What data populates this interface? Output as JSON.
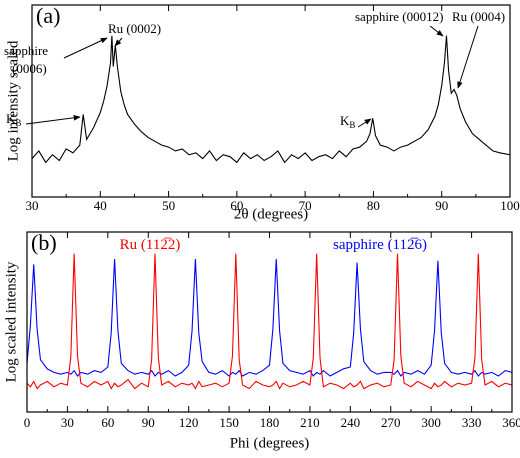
{
  "chart_data": [
    {
      "type": "line",
      "panel_label": "(a)",
      "xlabel": "2θ (degrees)",
      "ylabel": "Log intensity scaled",
      "xlim": [
        30,
        100
      ],
      "xticks": [
        30,
        40,
        50,
        60,
        70,
        80,
        90,
        100
      ],
      "ylim": [
        0,
        100
      ],
      "x": [
        30,
        31,
        32,
        33,
        34,
        35,
        36,
        37,
        37.5,
        38,
        38.5,
        39,
        39.5,
        40,
        40.5,
        41,
        41.5,
        41.7,
        41.9,
        42.2,
        42.5,
        43,
        43.5,
        44,
        45,
        46,
        47,
        48,
        49,
        50,
        51,
        52,
        53,
        54,
        55,
        56,
        57,
        58,
        59,
        60,
        61,
        62,
        63,
        64,
        65,
        66,
        67,
        68,
        69,
        70,
        71,
        72,
        73,
        74,
        75,
        76,
        77,
        78,
        79,
        79.5,
        79.9,
        80.3,
        81,
        82,
        83,
        84,
        85,
        86,
        87,
        88,
        89,
        89.5,
        90,
        90.4,
        90.7,
        91,
        91.4,
        91.8,
        92.2,
        92.7,
        93.5,
        94.5,
        95.5,
        96.5,
        97.5,
        98.5,
        100
      ],
      "series": [
        {
          "color": "#000000",
          "values": [
            20,
            24,
            18,
            22,
            19,
            25,
            23,
            27,
            43,
            30,
            33,
            36,
            40,
            44,
            50,
            58,
            70,
            84,
            68,
            79,
            68,
            55,
            48,
            43,
            38,
            34,
            31,
            29,
            27,
            26,
            24,
            25,
            22,
            23,
            20,
            24,
            19,
            22,
            21,
            18,
            23,
            20,
            22,
            19,
            21,
            24,
            18,
            22,
            20,
            23,
            19,
            21,
            22,
            20,
            24,
            21,
            25,
            26,
            29,
            33,
            41,
            32,
            27,
            26,
            24,
            26,
            27,
            29,
            31,
            35,
            42,
            48,
            58,
            70,
            84,
            66,
            54,
            56,
            53,
            46,
            39,
            33,
            30,
            27,
            24,
            23,
            22
          ]
        }
      ],
      "annotations": [
        {
          "text": "sapphire"
        },
        {
          "text": "(0006)"
        },
        {
          "text": "Ru (0002)"
        },
        {
          "text": "K",
          "subscript": "B"
        },
        {
          "text": "K",
          "subscript": "B"
        },
        {
          "text": "sapphire (00012)"
        },
        {
          "text": "Ru (0004)"
        }
      ]
    },
    {
      "type": "line",
      "panel_label": "(b)",
      "xlabel": "Phi (degrees)",
      "ylabel": "Log scaled intensity",
      "xlim": [
        0,
        360
      ],
      "xticks": [
        0,
        30,
        60,
        90,
        120,
        150,
        180,
        210,
        240,
        270,
        300,
        330,
        360
      ],
      "ylim": [
        0,
        100
      ],
      "x": [
        0,
        2.5,
        5,
        7.5,
        10,
        15,
        20,
        25,
        30,
        32.5,
        35,
        37.5,
        40,
        45,
        50,
        55,
        60,
        62.5,
        65,
        67.5,
        70,
        75,
        80,
        85,
        90,
        92.5,
        95,
        97.5,
        100,
        105,
        110,
        115,
        120,
        122.5,
        125,
        127.5,
        130,
        135,
        140,
        145,
        150,
        152.5,
        155,
        157.5,
        160,
        165,
        170,
        175,
        180,
        182.5,
        185,
        187.5,
        190,
        195,
        200,
        205,
        210,
        212.5,
        215,
        217.5,
        220,
        225,
        230,
        235,
        240,
        242.5,
        245,
        247.5,
        250,
        255,
        260,
        265,
        270,
        272.5,
        275,
        277.5,
        280,
        285,
        290,
        295,
        300,
        302.5,
        305,
        307.5,
        310,
        315,
        320,
        325,
        330,
        332.5,
        335,
        337.5,
        340,
        345,
        350,
        355,
        360
      ],
      "series": [
        {
          "color": "#0000ff",
          "values": [
            27,
            48,
            82,
            46,
            29,
            24,
            22,
            21,
            22,
            21,
            23,
            20,
            22,
            21,
            23,
            22,
            25,
            44,
            85,
            45,
            27,
            23,
            21,
            22,
            21,
            23,
            20,
            22,
            21,
            23,
            20,
            22,
            26,
            45,
            85,
            44,
            28,
            22,
            21,
            23,
            20,
            22,
            21,
            23,
            20,
            22,
            21,
            23,
            26,
            46,
            85,
            45,
            27,
            23,
            22,
            21,
            23,
            20,
            22,
            21,
            23,
            20,
            22,
            24,
            25,
            44,
            83,
            46,
            28,
            23,
            21,
            22,
            22,
            21,
            23,
            20,
            22,
            21,
            23,
            21,
            26,
            45,
            84,
            44,
            27,
            22,
            21,
            22,
            21,
            23,
            20,
            22,
            21,
            22,
            20,
            23,
            22
          ]
        },
        {
          "color": "#ff0000",
          "values": [
            16,
            14,
            17,
            13,
            15,
            17,
            14,
            16,
            15,
            30,
            88,
            31,
            16,
            14,
            17,
            15,
            17,
            13,
            16,
            14,
            15,
            18,
            13,
            16,
            14,
            29,
            88,
            30,
            15,
            17,
            14,
            16,
            15,
            16,
            13,
            17,
            14,
            15,
            16,
            14,
            16,
            31,
            88,
            29,
            15,
            13,
            17,
            15,
            14,
            15,
            17,
            13,
            16,
            14,
            15,
            17,
            15,
            30,
            88,
            30,
            14,
            16,
            15,
            13,
            16,
            14,
            15,
            17,
            13,
            15,
            16,
            14,
            15,
            29,
            88,
            31,
            16,
            14,
            17,
            15,
            13,
            16,
            14,
            15,
            17,
            14,
            16,
            15,
            16,
            30,
            88,
            29,
            15,
            17,
            14,
            16,
            15
          ]
        }
      ],
      "annotations": [
        {
          "text": "Ru (112̅2)",
          "color": "#ff0000"
        },
        {
          "text": "sapphire (112̅6)",
          "color": "#0000ff"
        }
      ]
    }
  ]
}
